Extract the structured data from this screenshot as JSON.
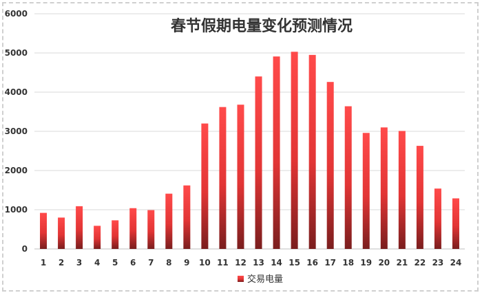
{
  "chart_data": {
    "type": "bar",
    "title": "春节假期电量变化预测情况",
    "xlabel": "",
    "ylabel": "",
    "categories": [
      "1",
      "2",
      "3",
      "4",
      "5",
      "6",
      "7",
      "8",
      "9",
      "10",
      "11",
      "12",
      "13",
      "14",
      "15",
      "16",
      "17",
      "18",
      "19",
      "20",
      "21",
      "22",
      "23",
      "24"
    ],
    "series": [
      {
        "name": "交易电量",
        "values": [
          920,
          800,
          1090,
          590,
          730,
          1040,
          990,
          1410,
          1620,
          3200,
          3620,
          3680,
          4400,
          4910,
          5030,
          4950,
          4260,
          3640,
          2960,
          3100,
          3010,
          2630,
          1540,
          1290
        ]
      }
    ],
    "ylim": [
      0,
      6000
    ],
    "yticks": [
      "0",
      "1000",
      "2000",
      "3000",
      "4000",
      "5000",
      "6000"
    ],
    "grid": true,
    "legend_position": "bottom",
    "colors": {
      "bar_top": "#ff4a4a",
      "bar_bottom": "#7a1e1e",
      "grid": "#d9d9d9",
      "axis": "#bfbfbf"
    }
  }
}
